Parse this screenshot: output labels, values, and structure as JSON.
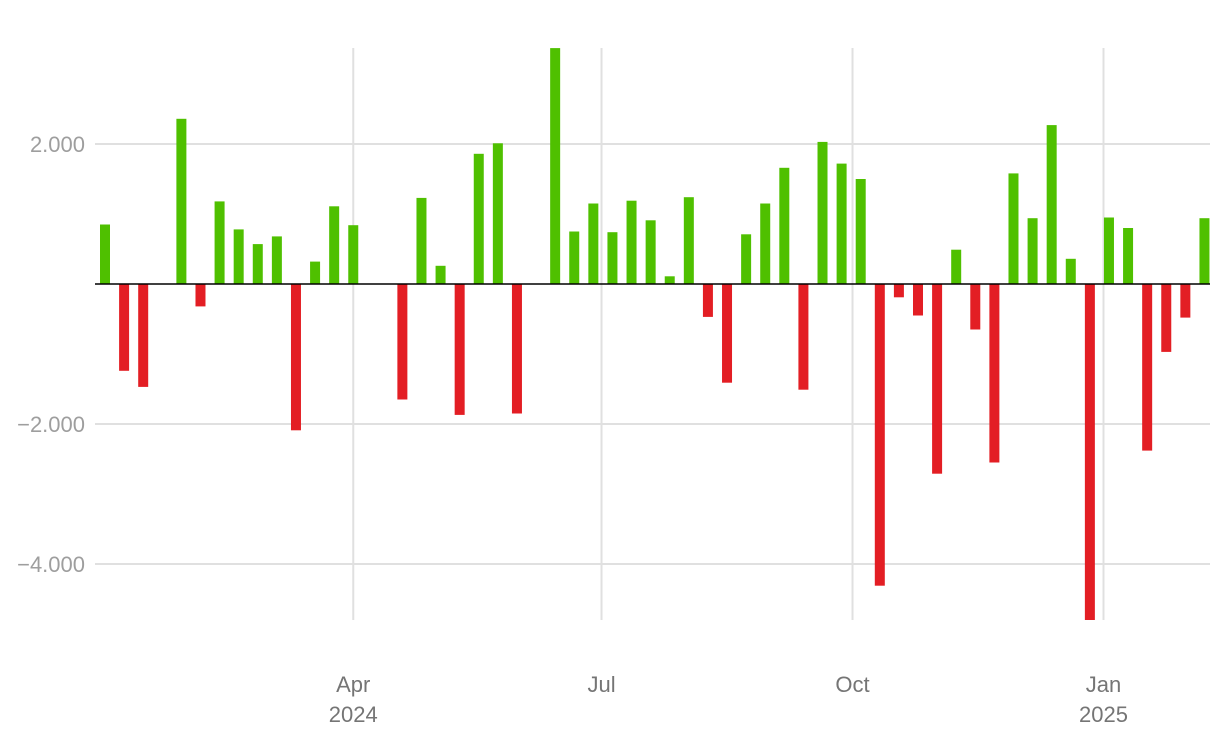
{
  "chart_data": {
    "type": "bar",
    "title": "",
    "xlabel": "",
    "ylabel": "",
    "ylim": [
      -4800,
      3360
    ],
    "xlim": [
      "2024-01-01",
      "2025-02-05"
    ],
    "grid": true,
    "legend": "none",
    "colors": {
      "positive": "#4fc000",
      "negative": "#e31e24",
      "grid": "#e0e0e0",
      "zero_line": "#000000",
      "axis_text": "#9e9e9e"
    },
    "y_ticks": [
      {
        "value": 2000,
        "label": "2.000"
      },
      {
        "value": -2000,
        "label": "−2.000"
      },
      {
        "value": -4000,
        "label": "−4.000"
      }
    ],
    "x_ticks": [
      {
        "date": "2024-04-01",
        "label": "Apr",
        "sublabel": "2024"
      },
      {
        "date": "2024-07-01",
        "label": "Jul",
        "sublabel": ""
      },
      {
        "date": "2024-10-01",
        "label": "Oct",
        "sublabel": ""
      },
      {
        "date": "2025-01-01",
        "label": "Jan",
        "sublabel": "2025"
      }
    ],
    "bars": [
      {
        "date": "2024-01-01",
        "value": 850
      },
      {
        "date": "2024-01-08",
        "value": -1240
      },
      {
        "date": "2024-01-15",
        "value": -1470
      },
      {
        "date": "2024-01-29",
        "value": 2360
      },
      {
        "date": "2024-02-05",
        "value": -320
      },
      {
        "date": "2024-02-12",
        "value": 1180
      },
      {
        "date": "2024-02-19",
        "value": 780
      },
      {
        "date": "2024-02-26",
        "value": 570
      },
      {
        "date": "2024-03-04",
        "value": 680
      },
      {
        "date": "2024-03-11",
        "value": -2090
      },
      {
        "date": "2024-03-18",
        "value": 320
      },
      {
        "date": "2024-03-25",
        "value": 1110
      },
      {
        "date": "2024-04-01",
        "value": 840
      },
      {
        "date": "2024-04-19",
        "value": -1650
      },
      {
        "date": "2024-04-26",
        "value": 1230
      },
      {
        "date": "2024-05-03",
        "value": 260
      },
      {
        "date": "2024-05-10",
        "value": -1870
      },
      {
        "date": "2024-05-17",
        "value": 1860
      },
      {
        "date": "2024-05-24",
        "value": 2010
      },
      {
        "date": "2024-05-31",
        "value": -1850
      },
      {
        "date": "2024-06-14",
        "value": 3370
      },
      {
        "date": "2024-06-21",
        "value": 750
      },
      {
        "date": "2024-06-28",
        "value": 1150
      },
      {
        "date": "2024-07-05",
        "value": 740
      },
      {
        "date": "2024-07-12",
        "value": 1190
      },
      {
        "date": "2024-07-19",
        "value": 910
      },
      {
        "date": "2024-07-26",
        "value": 110
      },
      {
        "date": "2024-08-02",
        "value": 1240
      },
      {
        "date": "2024-08-09",
        "value": -470
      },
      {
        "date": "2024-08-16",
        "value": -1410
      },
      {
        "date": "2024-08-23",
        "value": 710
      },
      {
        "date": "2024-08-30",
        "value": 1150
      },
      {
        "date": "2024-09-06",
        "value": 1660
      },
      {
        "date": "2024-09-13",
        "value": -1510
      },
      {
        "date": "2024-09-20",
        "value": 2030
      },
      {
        "date": "2024-09-27",
        "value": 1720
      },
      {
        "date": "2024-10-04",
        "value": 1500
      },
      {
        "date": "2024-10-11",
        "value": -4310
      },
      {
        "date": "2024-10-18",
        "value": -190
      },
      {
        "date": "2024-10-25",
        "value": -450
      },
      {
        "date": "2024-11-01",
        "value": -2710
      },
      {
        "date": "2024-11-08",
        "value": 490
      },
      {
        "date": "2024-11-15",
        "value": -650
      },
      {
        "date": "2024-11-22",
        "value": -2550
      },
      {
        "date": "2024-11-29",
        "value": 1580
      },
      {
        "date": "2024-12-06",
        "value": 940
      },
      {
        "date": "2024-12-13",
        "value": 2270
      },
      {
        "date": "2024-12-20",
        "value": 360
      },
      {
        "date": "2024-12-27",
        "value": -4800
      },
      {
        "date": "2025-01-03",
        "value": 950
      },
      {
        "date": "2025-01-10",
        "value": 800
      },
      {
        "date": "2025-01-17",
        "value": -2380
      },
      {
        "date": "2025-01-24",
        "value": -970
      },
      {
        "date": "2025-01-31",
        "value": -480
      },
      {
        "date": "2025-02-07",
        "value": 940
      }
    ]
  }
}
